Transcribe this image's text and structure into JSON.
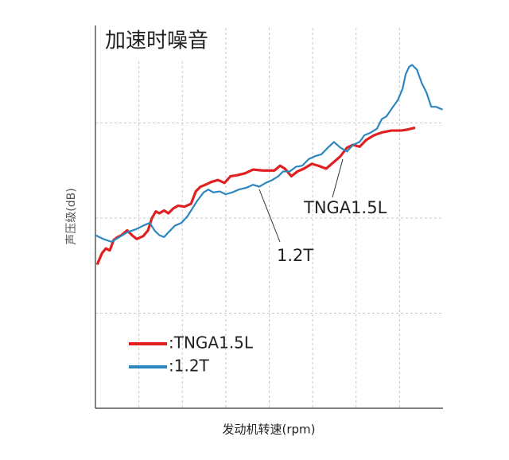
{
  "chart_data": {
    "type": "line",
    "title": "加速时噪音",
    "x_label": "发动机转速(rpm)",
    "y_label": "声压级(dB)",
    "xlim": [
      0,
      8
    ],
    "ylim": [
      0,
      4
    ],
    "xticks": [
      1,
      2,
      3,
      4,
      5,
      6,
      7
    ],
    "yticks": [
      1,
      2,
      3
    ],
    "grid": true,
    "series": [
      {
        "name": ":TNGA1.5L",
        "color": "#e02020",
        "x": [
          0.04,
          0.15,
          0.24,
          0.33,
          0.42,
          0.51,
          0.6,
          0.73,
          0.84,
          0.95,
          1.1,
          1.21,
          1.3,
          1.39,
          1.47,
          1.58,
          1.68,
          1.79,
          1.9,
          2.05,
          2.2,
          2.31,
          2.42,
          2.53,
          2.67,
          2.82,
          2.97,
          3.11,
          3.26,
          3.44,
          3.63,
          3.85,
          4.12,
          4.25,
          4.36,
          4.51,
          4.65,
          4.8,
          4.98,
          5.13,
          5.31,
          5.49,
          5.64,
          5.79,
          5.93,
          6.08,
          6.23,
          6.41,
          6.59,
          6.81,
          7.03,
          7.18,
          7.36
        ],
        "values": [
          1.51,
          1.63,
          1.68,
          1.66,
          1.77,
          1.8,
          1.82,
          1.87,
          1.82,
          1.78,
          1.81,
          1.87,
          2.0,
          2.07,
          2.05,
          2.08,
          2.05,
          2.1,
          2.13,
          2.12,
          2.15,
          2.28,
          2.33,
          2.35,
          2.38,
          2.4,
          2.37,
          2.44,
          2.45,
          2.47,
          2.51,
          2.5,
          2.5,
          2.55,
          2.52,
          2.44,
          2.49,
          2.52,
          2.57,
          2.55,
          2.52,
          2.59,
          2.65,
          2.74,
          2.77,
          2.75,
          2.82,
          2.87,
          2.9,
          2.92,
          2.92,
          2.93,
          2.95
        ]
      },
      {
        "name": ":1.2T",
        "color": "#2e86c1",
        "x": [
          0.0,
          0.18,
          0.37,
          0.55,
          0.73,
          0.92,
          1.1,
          1.25,
          1.36,
          1.47,
          1.58,
          1.68,
          1.83,
          1.98,
          2.12,
          2.23,
          2.34,
          2.49,
          2.6,
          2.71,
          2.86,
          3.0,
          3.15,
          3.3,
          3.48,
          3.63,
          3.77,
          3.92,
          4.07,
          4.21,
          4.32,
          4.47,
          4.62,
          4.76,
          4.91,
          5.05,
          5.2,
          5.35,
          5.49,
          5.64,
          5.79,
          5.93,
          6.08,
          6.19,
          6.34,
          6.48,
          6.59,
          6.7,
          6.85,
          6.96,
          7.07,
          7.14,
          7.22,
          7.29,
          7.4,
          7.51,
          7.62,
          7.73,
          7.84,
          7.99
        ],
        "values": [
          1.82,
          1.78,
          1.75,
          1.8,
          1.85,
          1.88,
          1.92,
          1.95,
          1.87,
          1.82,
          1.8,
          1.85,
          1.92,
          1.95,
          2.02,
          2.1,
          2.18,
          2.27,
          2.3,
          2.27,
          2.28,
          2.25,
          2.27,
          2.3,
          2.32,
          2.35,
          2.33,
          2.37,
          2.4,
          2.44,
          2.49,
          2.49,
          2.54,
          2.55,
          2.62,
          2.65,
          2.67,
          2.74,
          2.8,
          2.74,
          2.7,
          2.77,
          2.8,
          2.87,
          2.9,
          2.94,
          3.04,
          3.07,
          3.17,
          3.24,
          3.36,
          3.51,
          3.59,
          3.61,
          3.56,
          3.42,
          3.32,
          3.17,
          3.17,
          3.14
        ]
      }
    ],
    "annotations": [
      "TNGA1.5L",
      "1.2T"
    ]
  }
}
